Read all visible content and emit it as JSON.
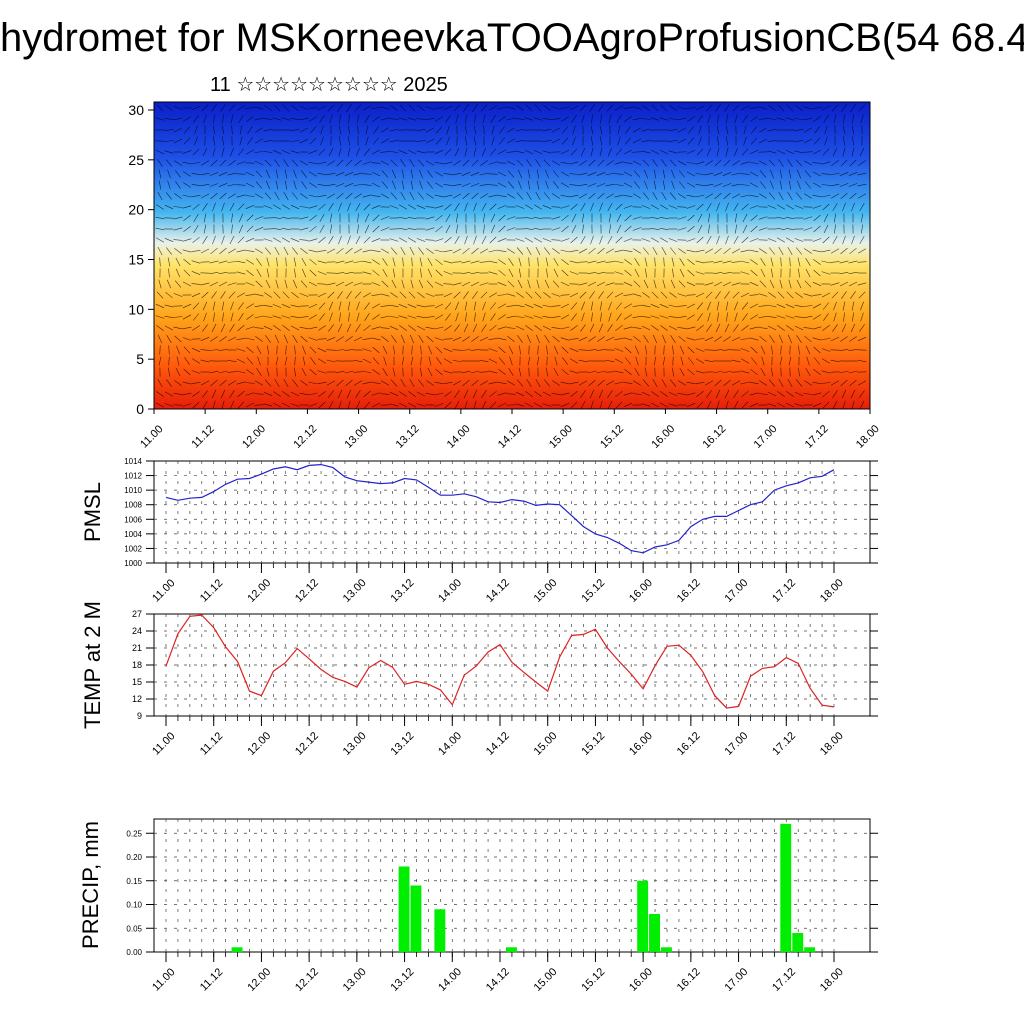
{
  "title": "hydromet for MSKorneevkaTOOAgroProfusionCB(54 68.4",
  "subtitle": "11 ☆☆☆☆☆☆☆☆☆ 2025",
  "time_labels": [
    "11.00",
    "11.12",
    "12.00",
    "12.12",
    "13.00",
    "13.12",
    "14.00",
    "14.12",
    "15.00",
    "15.12",
    "16.00",
    "16.12",
    "17.00",
    "17.12",
    "18.00"
  ],
  "colors": {
    "pmsl_line": "#2222cc",
    "temp_line": "#dd2222",
    "precip_bar": "#00ee00",
    "cross_section_cold": "#0a1fc8",
    "cross_section_warm": "#ff3a0a"
  },
  "chart_data": [
    {
      "type": "heatmap",
      "name": "cross-section",
      "xlabel": "",
      "ylabel": "",
      "ylim": [
        0,
        30
      ],
      "yticks": [
        "0",
        "5",
        "10",
        "15",
        "20",
        "25",
        "30"
      ],
      "x": [
        "11.00",
        "11.12",
        "12.00",
        "12.12",
        "13.00",
        "13.12",
        "14.00",
        "14.12",
        "15.00",
        "15.12",
        "16.00",
        "16.12",
        "17.00",
        "17.12",
        "18.00"
      ],
      "colormap": "blue (top) to white to yellow to red (bottom)",
      "overlay": "wind barbs"
    },
    {
      "type": "line",
      "name": "pmsl",
      "ylabel": "PMSL",
      "ylim": [
        1000,
        1014
      ],
      "yticks": [
        "1000",
        "1002",
        "1004",
        "1006",
        "1008",
        "1010",
        "1012",
        "1014"
      ],
      "x_range": [
        11.0,
        17.875
      ],
      "values": [
        1009.0,
        1008.6,
        1008.9,
        1009.0,
        1009.8,
        1010.8,
        1011.5,
        1011.6,
        1012.2,
        1012.9,
        1013.2,
        1012.8,
        1013.4,
        1013.5,
        1013.1,
        1011.8,
        1011.3,
        1011.1,
        1010.9,
        1011.0,
        1011.6,
        1011.4,
        1010.4,
        1009.3,
        1009.3,
        1009.5,
        1009.1,
        1008.4,
        1008.3,
        1008.7,
        1008.5,
        1007.9,
        1008.1,
        1008.0,
        1006.5,
        1005.0,
        1004.0,
        1003.5,
        1002.7,
        1001.7,
        1001.4,
        1002.2,
        1002.5,
        1003.1,
        1005.0,
        1006.0,
        1006.4,
        1006.4,
        1007.2,
        1008.0,
        1008.4,
        1010.0,
        1010.6,
        1011.0,
        1011.7,
        1011.9,
        1012.8
      ],
      "grid": true
    },
    {
      "type": "line",
      "name": "temperature",
      "ylabel": "TEMP at 2 M",
      "ylim": [
        9,
        27
      ],
      "yticks": [
        "9",
        "12",
        "15",
        "18",
        "21",
        "24",
        "27"
      ],
      "x_range": [
        11.0,
        17.875
      ],
      "values": [
        17.8,
        23.5,
        26.6,
        26.8,
        24.6,
        21.2,
        18.6,
        13.4,
        12.6,
        16.9,
        18.4,
        20.9,
        19.1,
        17.2,
        15.8,
        15.1,
        14.1,
        17.5,
        18.8,
        17.6,
        14.6,
        15.1,
        14.6,
        13.6,
        11.0,
        16.2,
        17.8,
        20.3,
        21.6,
        18.5,
        16.7,
        15.0,
        13.4,
        19.4,
        23.2,
        23.4,
        24.3,
        21.0,
        18.6,
        16.4,
        13.8,
        17.9,
        21.3,
        21.5,
        19.7,
        16.8,
        12.6,
        10.4,
        10.7,
        16.0,
        17.4,
        17.7,
        19.3,
        18.3,
        13.9,
        10.9,
        10.6
      ],
      "grid": true
    },
    {
      "type": "bar",
      "name": "precipitation",
      "ylabel": "PRECIP, mm",
      "ylim": [
        0,
        0.28
      ],
      "yticks": [
        "0.00",
        "0.05",
        "0.10",
        "0.15",
        "0.20",
        "0.25"
      ],
      "x_range": [
        11.0,
        17.875
      ],
      "values": [
        0,
        0,
        0,
        0,
        0,
        0,
        0.01,
        0,
        0,
        0,
        0,
        0,
        0,
        0,
        0,
        0,
        0,
        0,
        0,
        0,
        0.18,
        0.14,
        0,
        0.09,
        0,
        0,
        0,
        0,
        0,
        0.01,
        0,
        0,
        0,
        0,
        0,
        0,
        0,
        0,
        0,
        0,
        0.15,
        0.08,
        0.01,
        0,
        0,
        0,
        0,
        0,
        0,
        0,
        0,
        0,
        0.27,
        0.04,
        0.01,
        0,
        0
      ],
      "grid": true
    }
  ]
}
